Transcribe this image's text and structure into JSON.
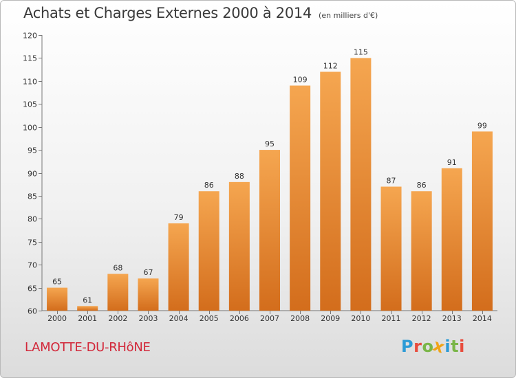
{
  "header": {
    "title": "Achats et Charges Externes 2000 à 2014",
    "subtitle": "(en milliers d'€)"
  },
  "footer": {
    "city": "LAMOTTE-DU-RHôNE",
    "logo": "Proxiti"
  },
  "colors": {
    "bar_top": "#f5a650",
    "bar_bottom": "#d36d1c",
    "city_text": "#d2283a",
    "logo_letters": [
      "#2c9bd6",
      "#e84c3d",
      "#7ab648",
      "#f0a418",
      "#2c9bd6",
      "#7ab648",
      "#e84c3d"
    ]
  },
  "chart_data": {
    "type": "bar",
    "title": "Achats et Charges Externes 2000 à 2014",
    "subtitle": "(en milliers d'€)",
    "xlabel": "",
    "ylabel": "",
    "categories": [
      "2000",
      "2001",
      "2002",
      "2003",
      "2004",
      "2005",
      "2006",
      "2007",
      "2008",
      "2009",
      "2010",
      "2011",
      "2012",
      "2013",
      "2014"
    ],
    "values": [
      65,
      61,
      68,
      67,
      79,
      86,
      88,
      95,
      109,
      112,
      115,
      87,
      86,
      91,
      99
    ],
    "ylim": [
      60,
      120
    ],
    "yticks": [
      60,
      65,
      70,
      75,
      80,
      85,
      90,
      95,
      100,
      105,
      110,
      115,
      120
    ],
    "grid": false,
    "legend": "none"
  }
}
